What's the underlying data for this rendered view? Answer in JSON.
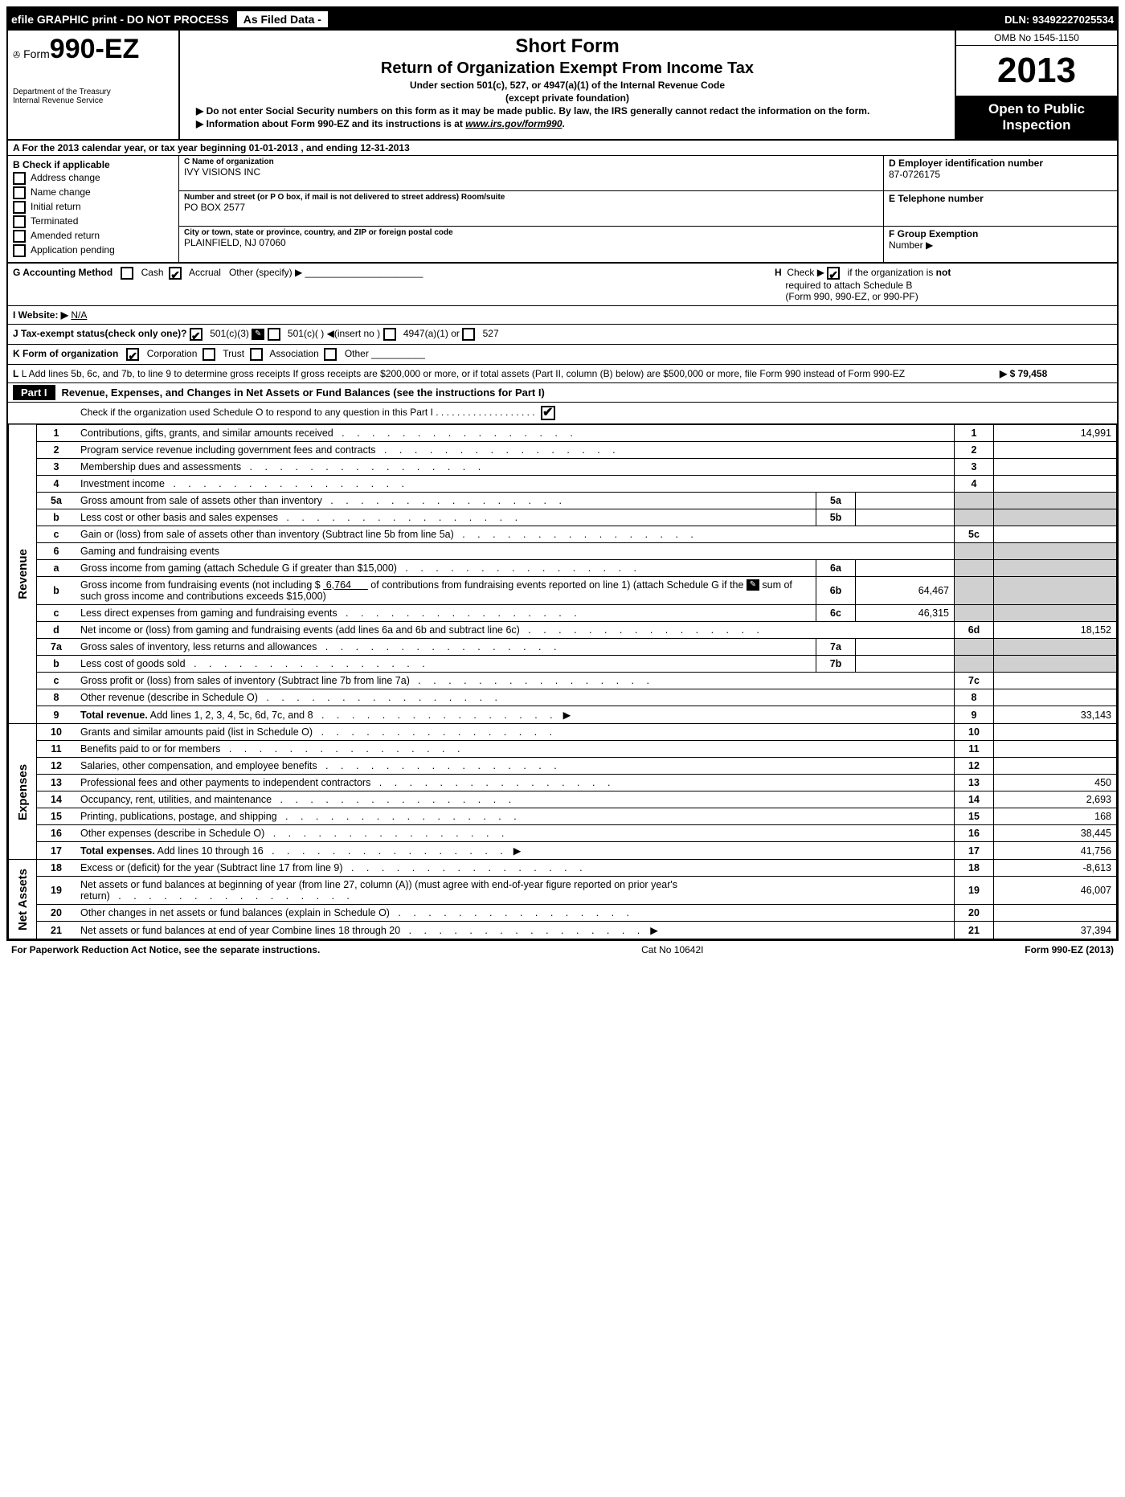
{
  "top": {
    "efile": "efile GRAPHIC print - DO NOT PROCESS",
    "as_filed": "As Filed Data - ",
    "dln": "DLN: 93492227025534"
  },
  "header": {
    "form_prefix": "Form",
    "form_number": "990-EZ",
    "short_form": "Short Form",
    "title": "Return of Organization Exempt From Income Tax",
    "subtitle1": "Under section 501(c), 527, or 4947(a)(1) of the Internal Revenue Code",
    "subtitle2": "(except private foundation)",
    "warn1": "▶ Do not enter Social Security numbers on this form as it may be made public. By law, the IRS generally cannot redact the information on the form.",
    "warn2_prefix": "▶ Information about Form 990-EZ and its instructions is at ",
    "warn2_link": "www.irs.gov/form990",
    "dept1": "Department of the Treasury",
    "dept2": "Internal Revenue Service",
    "omb": "OMB No 1545-1150",
    "year": "2013",
    "open1": "Open to Public",
    "open2": "Inspection"
  },
  "lineA": "A  For the 2013 calendar year, or tax year beginning 01-01-2013              , and ending 12-31-2013",
  "B": {
    "title": "B  Check if applicable",
    "opts": [
      "Address change",
      "Name change",
      "Initial return",
      "Terminated",
      "Amended return",
      "Application pending"
    ]
  },
  "C": {
    "name_lbl": "C Name of organization",
    "name": "IVY VISIONS INC",
    "street_lbl": "Number and street (or P  O  box, if mail is not delivered to street address) Room/suite",
    "street": "PO BOX 2577",
    "city_lbl": "City or town, state or province, country, and ZIP or foreign postal code",
    "city": "PLAINFIELD, NJ  07060"
  },
  "D": {
    "lbl": "D Employer identification number",
    "val": "87-0726175"
  },
  "E": {
    "lbl": "E Telephone number",
    "val": ""
  },
  "F": {
    "lbl": "F Group Exemption",
    "lbl2": "Number     ▶",
    "val": ""
  },
  "G": "G Accounting Method",
  "G_opts": {
    "cash": "Cash",
    "accrual": "Accrual",
    "other": "Other (specify) ▶"
  },
  "H": "H  Check ▶           if the organization is not required to attach Schedule B (Form 990, 990-EZ, or 990-PF)",
  "I": "I Website: ▶",
  "I_val": "N/A",
  "J": "J Tax-exempt status(check only one)?",
  "J_opts": [
    "501(c)(3)",
    "501(c)(  ) ◀(insert no )",
    "4947(a)(1) or",
    "527"
  ],
  "K": "K Form of organization",
  "K_opts": [
    "Corporation",
    "Trust",
    "Association",
    "Other"
  ],
  "L": "L Add lines 5b, 6c, and 7b, to line 9 to determine gross receipts  If gross receipts are $200,000 or more, or if total assets (Part II, column (B) below) are $500,000 or more, file Form 990 instead of Form 990-EZ",
  "L_val": "▶ $ 79,458",
  "part1": {
    "label": "Part I",
    "title": "Revenue, Expenses, and Changes in Net Assets or Fund Balances (see the instructions for Part I)",
    "check_line": "Check if the organization used Schedule O to respond to any question in this Part I  . . . . . . . . . . . . . . . . . . ."
  },
  "sections": {
    "revenue": "Revenue",
    "expenses": "Expenses",
    "netassets": "Net Assets"
  },
  "rows": [
    {
      "n": "1",
      "desc": "Contributions, gifts, grants, and similar amounts received",
      "r": "1",
      "v": "14,991"
    },
    {
      "n": "2",
      "desc": "Program service revenue including government fees and contracts",
      "r": "2",
      "v": ""
    },
    {
      "n": "3",
      "desc": "Membership dues and assessments",
      "r": "3",
      "v": ""
    },
    {
      "n": "4",
      "desc": "Investment income",
      "r": "4",
      "v": ""
    },
    {
      "n": "5a",
      "desc": "Gross amount from sale of assets other than inventory",
      "sub_n": "5a",
      "sub_v": ""
    },
    {
      "n": "b",
      "desc": "Less  cost or other basis and sales expenses",
      "sub_n": "5b",
      "sub_v": ""
    },
    {
      "n": "c",
      "desc": "Gain or (loss) from sale of assets other than inventory (Subtract line 5b from line 5a)",
      "r": "5c",
      "v": ""
    },
    {
      "n": "6",
      "desc": "Gaming and fundraising events",
      "shade": true
    },
    {
      "n": "a",
      "desc": "Gross income from gaming (attach Schedule G if greater than $15,000)",
      "sub_n": "6a",
      "sub_v": ""
    },
    {
      "n": "b",
      "desc_html": "Gross income from fundraising events (not including $ <u>&nbsp;6,764&nbsp;&nbsp;&nbsp;&nbsp;&nbsp;&nbsp;</u> of contributions from fundraising events reported on line 1) (attach Schedule G if the <span class='schedule-icon'>✎</span> sum of such gross income and contributions exceeds $15,000)",
      "sub_n": "6b",
      "sub_v": "64,467"
    },
    {
      "n": "c",
      "desc": "Less  direct expenses from gaming and fundraising events",
      "sub_n": "6c",
      "sub_v": "46,315"
    },
    {
      "n": "d",
      "desc": "Net income or (loss) from gaming and fundraising events (add lines 6a and 6b and subtract line 6c)",
      "r": "6d",
      "v": "18,152"
    },
    {
      "n": "7a",
      "desc": "Gross sales of inventory, less returns and allowances",
      "sub_n": "7a",
      "sub_v": ""
    },
    {
      "n": "b",
      "desc": "Less  cost of goods sold",
      "sub_n": "7b",
      "sub_v": ""
    },
    {
      "n": "c",
      "desc": "Gross profit or (loss) from sales of inventory (Subtract line 7b from line 7a)",
      "r": "7c",
      "v": ""
    },
    {
      "n": "8",
      "desc": "Other revenue (describe in Schedule O)",
      "r": "8",
      "v": ""
    },
    {
      "n": "9",
      "desc": "<b>Total revenue.</b> Add lines 1, 2, 3, 4, 5c, 6d, 7c, and 8",
      "r": "9",
      "v": "33,143",
      "arrow": true
    }
  ],
  "exp_rows": [
    {
      "n": "10",
      "desc": "Grants and similar amounts paid (list in Schedule O)",
      "r": "10",
      "v": ""
    },
    {
      "n": "11",
      "desc": "Benefits paid to or for members",
      "r": "11",
      "v": ""
    },
    {
      "n": "12",
      "desc": "Salaries, other compensation, and employee benefits",
      "r": "12",
      "v": ""
    },
    {
      "n": "13",
      "desc": "Professional fees and other payments to independent contractors",
      "r": "13",
      "v": "450"
    },
    {
      "n": "14",
      "desc": "Occupancy, rent, utilities, and maintenance",
      "r": "14",
      "v": "2,693"
    },
    {
      "n": "15",
      "desc": "Printing, publications, postage, and shipping",
      "r": "15",
      "v": "168"
    },
    {
      "n": "16",
      "desc": "Other expenses (describe in Schedule O)",
      "r": "16",
      "v": "38,445"
    },
    {
      "n": "17",
      "desc": "<b>Total expenses.</b> Add lines 10 through 16",
      "r": "17",
      "v": "41,756",
      "arrow": true
    }
  ],
  "na_rows": [
    {
      "n": "18",
      "desc": "Excess or (deficit) for the year (Subtract line 17 from line 9)",
      "r": "18",
      "v": "-8,613"
    },
    {
      "n": "19",
      "desc": "Net assets or fund balances at beginning of year (from line 27, column (A)) (must agree with end-of-year figure reported on prior year's return)",
      "r": "19",
      "v": "46,007"
    },
    {
      "n": "20",
      "desc": "Other changes in net assets or fund balances (explain in Schedule O)",
      "r": "20",
      "v": ""
    },
    {
      "n": "21",
      "desc": "Net assets or fund balances at end of year  Combine lines 18 through 20",
      "r": "21",
      "v": "37,394",
      "arrow": true
    }
  ],
  "footer": {
    "left": "For Paperwork Reduction Act Notice, see the separate instructions.",
    "mid": "Cat No  10642I",
    "right": "Form 990-EZ (2013)"
  }
}
